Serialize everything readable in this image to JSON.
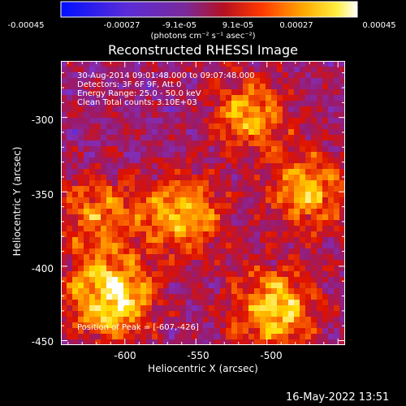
{
  "colorbar": {
    "ticks": [
      "-0.00045",
      "-0.00027",
      "-9.1e-05",
      "9.1e-05",
      "0.00027",
      "0.00045"
    ],
    "units": "(photons cm⁻² s⁻¹ asec⁻²)"
  },
  "chart_data": {
    "type": "heatmap",
    "title": "Reconstructed RHESSI Image",
    "xlabel": "Heliocentric X (arcsec)",
    "ylabel": "Heliocentric Y (arcsec)",
    "xlim": [
      -645,
      -445
    ],
    "ylim": [
      -453,
      -262
    ],
    "x_ticks": [
      "-600",
      "-550",
      "-500"
    ],
    "y_ticks": [
      "-300",
      "-350",
      "-400",
      "-450"
    ],
    "color_scale": {
      "min": -0.00045,
      "max": 0.00045,
      "palette": [
        "#0000ff",
        "#7a33cc",
        "#9a1a6a",
        "#dd1100",
        "#ff7700",
        "#ffdd00",
        "#ffffff"
      ]
    },
    "annotations": {
      "time_range": "30-Aug-2014 09:01:48.000 to 09:07:48.000",
      "detectors": "Detectors: 3F 6F 9F, Att 0",
      "energy": "Energy Range: 25.0 - 50.0 keV",
      "method": "Clean     Total counts: 3.10E+03",
      "peak": "Position of Peak = [-607,-426]"
    },
    "bright_regions": [
      {
        "x": -610,
        "y": -420,
        "intensity": 1.0
      },
      {
        "x": -560,
        "y": -365,
        "intensity": 0.7
      },
      {
        "x": -495,
        "y": -428,
        "intensity": 0.85
      },
      {
        "x": -470,
        "y": -350,
        "intensity": 0.65
      },
      {
        "x": -512,
        "y": -298,
        "intensity": 0.6
      },
      {
        "x": -620,
        "y": -365,
        "intensity": 0.55
      }
    ]
  },
  "footer": {
    "date": "16-May-2022 13:51"
  }
}
